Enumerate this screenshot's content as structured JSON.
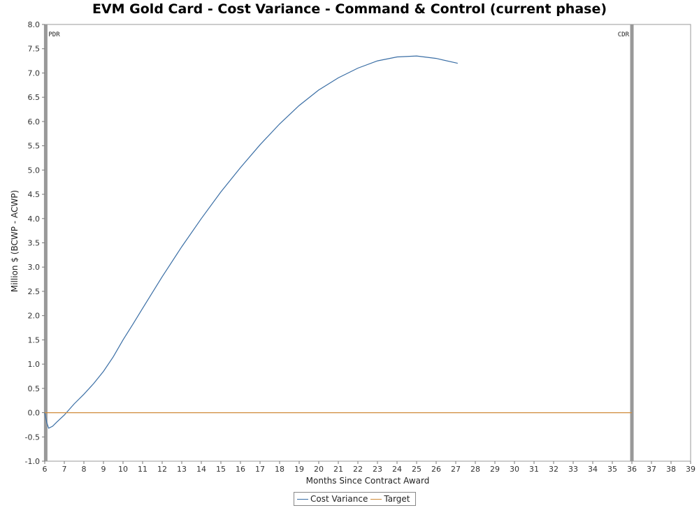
{
  "chart_data": {
    "type": "line",
    "title": "EVM Gold Card - Cost Variance - Command & Control (current phase)",
    "xlabel": "Months Since Contract Award",
    "ylabel": "Million $ (BCWP - ACWP)",
    "xlim": [
      6,
      39
    ],
    "ylim": [
      -1.0,
      8.0
    ],
    "x_ticks": [
      6,
      7,
      8,
      9,
      10,
      11,
      12,
      13,
      14,
      15,
      16,
      17,
      18,
      19,
      20,
      21,
      22,
      23,
      24,
      25,
      26,
      27,
      28,
      29,
      30,
      31,
      32,
      33,
      34,
      35,
      36,
      37,
      38,
      39
    ],
    "y_ticks": [
      "-1.0",
      "-0.5",
      "0.0",
      "0.5",
      "1.0",
      "1.5",
      "2.0",
      "2.5",
      "3.0",
      "3.5",
      "4.0",
      "4.5",
      "5.0",
      "5.5",
      "6.0",
      "6.5",
      "7.0",
      "7.5",
      "8.0"
    ],
    "grid": false,
    "legend_position": "bottom-center",
    "markers": [
      {
        "label": "PDR",
        "x": 6.05
      },
      {
        "label": "CDR",
        "x": 36.0
      }
    ],
    "series": [
      {
        "name": "Cost Variance",
        "color": "#3a6ea5",
        "x": [
          6.0,
          6.1,
          6.2,
          6.4,
          6.6,
          7.0,
          7.5,
          8.0,
          8.5,
          9.0,
          9.5,
          10.0,
          10.5,
          11.0,
          12.0,
          13.0,
          14.0,
          15.0,
          16.0,
          17.0,
          18.0,
          19.0,
          20.0,
          21.0,
          22.0,
          23.0,
          24.0,
          25.0,
          26.0,
          27.1
        ],
        "values": [
          0.0,
          -0.2,
          -0.32,
          -0.28,
          -0.2,
          -0.05,
          0.18,
          0.38,
          0.6,
          0.85,
          1.15,
          1.5,
          1.82,
          2.15,
          2.8,
          3.42,
          4.0,
          4.55,
          5.05,
          5.52,
          5.95,
          6.33,
          6.65,
          6.9,
          7.1,
          7.25,
          7.33,
          7.35,
          7.3,
          7.2
        ]
      },
      {
        "name": "Target",
        "color": "#d08c3a",
        "x": [
          6.0,
          36.0
        ],
        "values": [
          0.0,
          0.0
        ]
      }
    ]
  }
}
